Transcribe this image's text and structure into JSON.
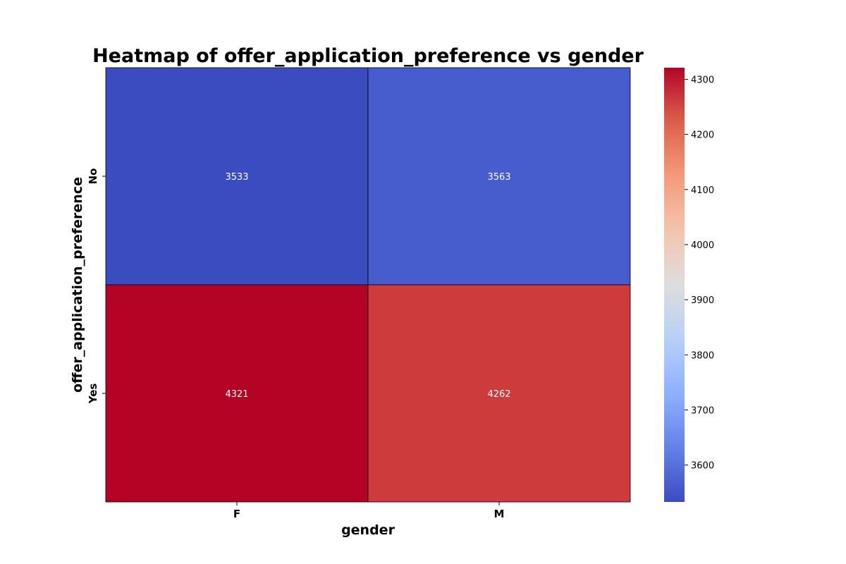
{
  "chart_data": {
    "type": "heatmap",
    "title": "Heatmap of offer_application_preference vs gender",
    "xlabel": "gender",
    "ylabel": "offer_application_preference",
    "x_categories": [
      "F",
      "M"
    ],
    "y_categories": [
      "No",
      "Yes"
    ],
    "values": [
      [
        3533,
        3563
      ],
      [
        4321,
        4262
      ]
    ],
    "colormap": "coolwarm",
    "vmin": 3533,
    "vmax": 4321,
    "colorbar_ticks": [
      3600,
      3700,
      3800,
      3900,
      4000,
      4100,
      4200,
      4300
    ],
    "cell_border_color": "#000000",
    "annotation_color": "#ffffff"
  }
}
